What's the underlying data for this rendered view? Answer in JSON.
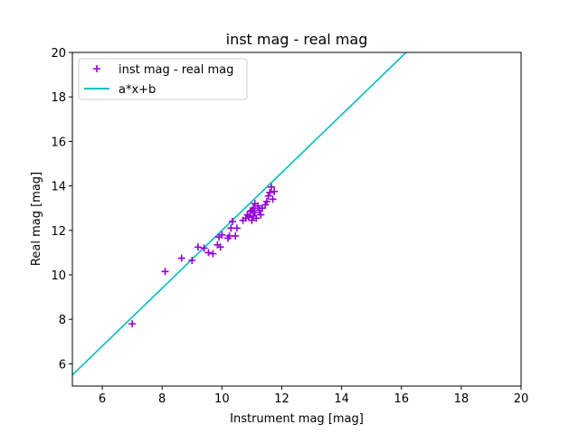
{
  "chart_data": {
    "type": "scatter",
    "title": "inst mag - real mag",
    "xlabel": "Instrument mag [mag]",
    "ylabel": "Real mag [mag]",
    "xlim": [
      5,
      20
    ],
    "ylim": [
      5,
      20
    ],
    "xticks": [
      "6",
      "8",
      "10",
      "12",
      "14",
      "16",
      "18",
      "20"
    ],
    "yticks": [
      "6",
      "8",
      "10",
      "12",
      "14",
      "16",
      "18",
      "20"
    ],
    "grid": false,
    "legend_position": "top-left",
    "series": [
      {
        "name": "inst mag - real mag",
        "kind": "scatter",
        "marker": "plus",
        "color": "#9400d3",
        "points": [
          [
            7.0,
            7.8
          ],
          [
            8.1,
            10.15
          ],
          [
            8.65,
            10.75
          ],
          [
            9.0,
            10.65
          ],
          [
            9.2,
            11.25
          ],
          [
            9.4,
            11.2
          ],
          [
            9.55,
            11.0
          ],
          [
            9.7,
            10.95
          ],
          [
            9.85,
            11.35
          ],
          [
            9.9,
            11.7
          ],
          [
            9.95,
            11.25
          ],
          [
            10.0,
            11.8
          ],
          [
            10.2,
            11.65
          ],
          [
            10.25,
            11.75
          ],
          [
            10.3,
            12.1
          ],
          [
            10.35,
            12.4
          ],
          [
            10.45,
            11.75
          ],
          [
            10.5,
            12.1
          ],
          [
            10.7,
            12.45
          ],
          [
            10.8,
            12.55
          ],
          [
            10.85,
            12.7
          ],
          [
            10.9,
            12.6
          ],
          [
            10.95,
            12.85
          ],
          [
            11.0,
            12.45
          ],
          [
            11.0,
            12.9
          ],
          [
            11.05,
            13.0
          ],
          [
            11.05,
            12.65
          ],
          [
            11.1,
            12.8
          ],
          [
            11.1,
            13.2
          ],
          [
            11.15,
            12.55
          ],
          [
            11.2,
            13.1
          ],
          [
            11.25,
            12.9
          ],
          [
            11.3,
            12.7
          ],
          [
            11.35,
            13.0
          ],
          [
            11.45,
            13.15
          ],
          [
            11.5,
            13.3
          ],
          [
            11.55,
            13.55
          ],
          [
            11.6,
            13.7
          ],
          [
            11.65,
            13.95
          ],
          [
            11.7,
            13.4
          ],
          [
            11.75,
            13.75
          ]
        ]
      },
      {
        "name": "a*x+b",
        "kind": "line",
        "color": "#00bfbf",
        "a": 1.3,
        "b": -1.0
      }
    ]
  }
}
